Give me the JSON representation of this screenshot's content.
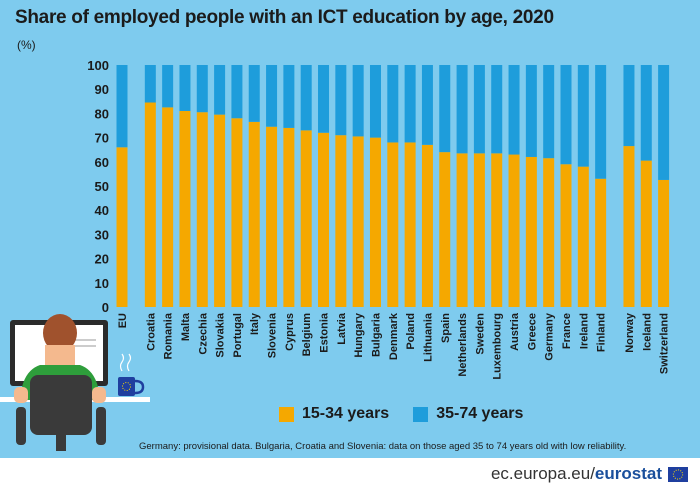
{
  "title": "Share of employed people with an ICT education by age, 2020",
  "unit_label": "(%)",
  "colors": {
    "background": "#7ecbee",
    "young": "#f5a800",
    "old": "#1e9ddb"
  },
  "footnote": "Germany: provisional data. Bulgaria, Croatia and Slovenia: data on those aged 35 to 74 years old with low reliability.",
  "footer": {
    "site_prefix": "ec.europa.eu/",
    "site_brand": "eurostat"
  },
  "icons": [
    "eu-flag-icon",
    "person-at-computer-illustration",
    "coffee-mug-icon"
  ],
  "chart_data": {
    "type": "bar",
    "stacked": true,
    "title": "Share of employed people with an ICT education by age, 2020",
    "ylabel": "(%)",
    "ylim": [
      0,
      100
    ],
    "yticks": [
      0,
      10,
      20,
      30,
      40,
      50,
      60,
      70,
      80,
      90,
      100
    ],
    "legend_position": "bottom",
    "groups": [
      {
        "categories": [
          "EU"
        ]
      },
      {
        "categories": [
          "Croatia",
          "Romania",
          "Malta",
          "Czechia",
          "Slovakia",
          "Portugal",
          "Italy",
          "Slovenia",
          "Cyprus",
          "Belgium",
          "Estonia",
          "Latvia",
          "Hungary",
          "Bulgaria",
          "Denmark",
          "Poland",
          "Lithuania",
          "Spain",
          "Netherlands",
          "Sweden",
          "Luxembourg",
          "Austria",
          "Greece",
          "Germany",
          "France",
          "Ireland",
          "Finland"
        ]
      },
      {
        "categories": [
          "Norway",
          "Iceland",
          "Switzerland"
        ]
      }
    ],
    "categories": [
      "EU",
      "Croatia",
      "Romania",
      "Malta",
      "Czechia",
      "Slovakia",
      "Portugal",
      "Italy",
      "Slovenia",
      "Cyprus",
      "Belgium",
      "Estonia",
      "Latvia",
      "Hungary",
      "Bulgaria",
      "Denmark",
      "Poland",
      "Lithuania",
      "Spain",
      "Netherlands",
      "Sweden",
      "Luxembourg",
      "Austria",
      "Greece",
      "Germany",
      "France",
      "Ireland",
      "Finland",
      "Norway",
      "Iceland",
      "Switzerland"
    ],
    "series": [
      {
        "name": "15-34 years",
        "values": [
          66,
          84.5,
          82.5,
          81,
          80.5,
          79.5,
          78,
          76.5,
          74.5,
          74,
          73,
          72,
          71,
          70.5,
          70,
          68,
          68,
          67,
          64,
          63.5,
          63.5,
          63.5,
          63,
          62,
          61.5,
          59,
          58,
          53,
          66.5,
          60.5,
          52.5
        ]
      },
      {
        "name": "35-74 years",
        "values": [
          34,
          15.5,
          17.5,
          19,
          19.5,
          20.5,
          22,
          23.5,
          25.5,
          26,
          27,
          28,
          29,
          29.5,
          30,
          32,
          32,
          33,
          36,
          36.5,
          36.5,
          36.5,
          37,
          38,
          38.5,
          41,
          42,
          47,
          33.5,
          39.5,
          47.5
        ]
      }
    ]
  }
}
